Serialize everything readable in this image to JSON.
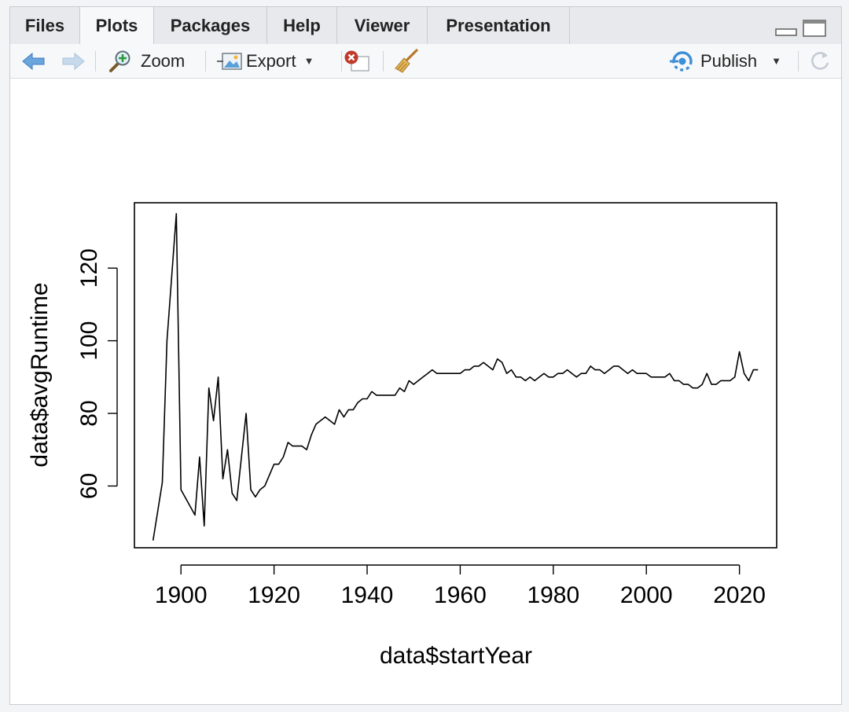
{
  "tabs": [
    {
      "label": "Files"
    },
    {
      "label": "Plots",
      "active": true
    },
    {
      "label": "Packages"
    },
    {
      "label": "Help"
    },
    {
      "label": "Viewer"
    },
    {
      "label": "Presentation"
    }
  ],
  "toolbar": {
    "zoom_label": "Zoom",
    "export_label": "Export",
    "publish_label": "Publish"
  },
  "icons": {
    "back": "arrow-left-icon",
    "forward": "arrow-right-icon",
    "zoom": "magnifier-icon",
    "export": "export-image-icon",
    "remove": "remove-plot-icon",
    "clear": "broom-icon",
    "publish": "publish-icon",
    "refresh": "refresh-icon"
  },
  "colors": {
    "back_arrow": "#6aa6dd",
    "forward_arrow": "#c7daec",
    "remove_red": "#c0392b",
    "publish_blue": "#3d8fd6"
  },
  "chart_data": {
    "type": "line",
    "xlabel": "data$startYear",
    "ylabel": "data$avgRuntime",
    "xlim": [
      1890,
      2028
    ],
    "ylim": [
      43,
      138
    ],
    "x_ticks": [
      1900,
      1920,
      1940,
      1960,
      1980,
      2000,
      2020
    ],
    "y_ticks": [
      60,
      80,
      100,
      120
    ],
    "x_tick_labels": [
      "1900",
      "1920",
      "1940",
      "1960",
      "1980",
      "2000",
      "2020"
    ],
    "y_tick_labels": [
      "60",
      "80",
      "100",
      "120"
    ],
    "series": [
      {
        "color": "#000000",
        "points": [
          [
            1894,
            45
          ],
          [
            1896,
            61
          ],
          [
            1897,
            100
          ],
          [
            1899,
            135
          ],
          [
            1900,
            59
          ],
          [
            1903,
            52
          ],
          [
            1904,
            68
          ],
          [
            1905,
            49
          ],
          [
            1906,
            87
          ],
          [
            1907,
            78
          ],
          [
            1908,
            90
          ],
          [
            1909,
            62
          ],
          [
            1910,
            70
          ],
          [
            1911,
            58
          ],
          [
            1912,
            56
          ],
          [
            1914,
            80
          ],
          [
            1915,
            59
          ],
          [
            1916,
            57
          ],
          [
            1917,
            59
          ],
          [
            1918,
            60
          ],
          [
            1919,
            63
          ],
          [
            1920,
            66
          ],
          [
            1921,
            66
          ],
          [
            1922,
            68
          ],
          [
            1923,
            72
          ],
          [
            1924,
            71
          ],
          [
            1925,
            71
          ],
          [
            1926,
            71
          ],
          [
            1927,
            70
          ],
          [
            1928,
            74
          ],
          [
            1929,
            77
          ],
          [
            1930,
            78
          ],
          [
            1931,
            79
          ],
          [
            1932,
            78
          ],
          [
            1933,
            77
          ],
          [
            1934,
            81
          ],
          [
            1935,
            79
          ],
          [
            1936,
            81
          ],
          [
            1937,
            81
          ],
          [
            1938,
            83
          ],
          [
            1939,
            84
          ],
          [
            1940,
            84
          ],
          [
            1941,
            86
          ],
          [
            1942,
            85
          ],
          [
            1943,
            85
          ],
          [
            1944,
            85
          ],
          [
            1945,
            85
          ],
          [
            1946,
            85
          ],
          [
            1947,
            87
          ],
          [
            1948,
            86
          ],
          [
            1949,
            89
          ],
          [
            1950,
            88
          ],
          [
            1951,
            89
          ],
          [
            1952,
            90
          ],
          [
            1953,
            91
          ],
          [
            1954,
            92
          ],
          [
            1955,
            91
          ],
          [
            1956,
            91
          ],
          [
            1957,
            91
          ],
          [
            1958,
            91
          ],
          [
            1959,
            91
          ],
          [
            1960,
            91
          ],
          [
            1961,
            92
          ],
          [
            1962,
            92
          ],
          [
            1963,
            93
          ],
          [
            1964,
            93
          ],
          [
            1965,
            94
          ],
          [
            1966,
            93
          ],
          [
            1967,
            92
          ],
          [
            1968,
            95
          ],
          [
            1969,
            94
          ],
          [
            1970,
            91
          ],
          [
            1971,
            92
          ],
          [
            1972,
            90
          ],
          [
            1973,
            90
          ],
          [
            1974,
            89
          ],
          [
            1975,
            90
          ],
          [
            1976,
            89
          ],
          [
            1977,
            90
          ],
          [
            1978,
            91
          ],
          [
            1979,
            90
          ],
          [
            1980,
            90
          ],
          [
            1981,
            91
          ],
          [
            1982,
            91
          ],
          [
            1983,
            92
          ],
          [
            1984,
            91
          ],
          [
            1985,
            90
          ],
          [
            1986,
            91
          ],
          [
            1987,
            91
          ],
          [
            1988,
            93
          ],
          [
            1989,
            92
          ],
          [
            1990,
            92
          ],
          [
            1991,
            91
          ],
          [
            1992,
            92
          ],
          [
            1993,
            93
          ],
          [
            1994,
            93
          ],
          [
            1995,
            92
          ],
          [
            1996,
            91
          ],
          [
            1997,
            92
          ],
          [
            1998,
            91
          ],
          [
            1999,
            91
          ],
          [
            2000,
            91
          ],
          [
            2001,
            90
          ],
          [
            2002,
            90
          ],
          [
            2003,
            90
          ],
          [
            2004,
            90
          ],
          [
            2005,
            91
          ],
          [
            2006,
            89
          ],
          [
            2007,
            89
          ],
          [
            2008,
            88
          ],
          [
            2009,
            88
          ],
          [
            2010,
            87
          ],
          [
            2011,
            87
          ],
          [
            2012,
            88
          ],
          [
            2013,
            91
          ],
          [
            2014,
            88
          ],
          [
            2015,
            88
          ],
          [
            2016,
            89
          ],
          [
            2017,
            89
          ],
          [
            2018,
            89
          ],
          [
            2019,
            90
          ],
          [
            2020,
            97
          ],
          [
            2021,
            91
          ],
          [
            2022,
            89
          ],
          [
            2023,
            92
          ],
          [
            2024,
            92
          ]
        ]
      }
    ],
    "box": true,
    "grid": false
  }
}
